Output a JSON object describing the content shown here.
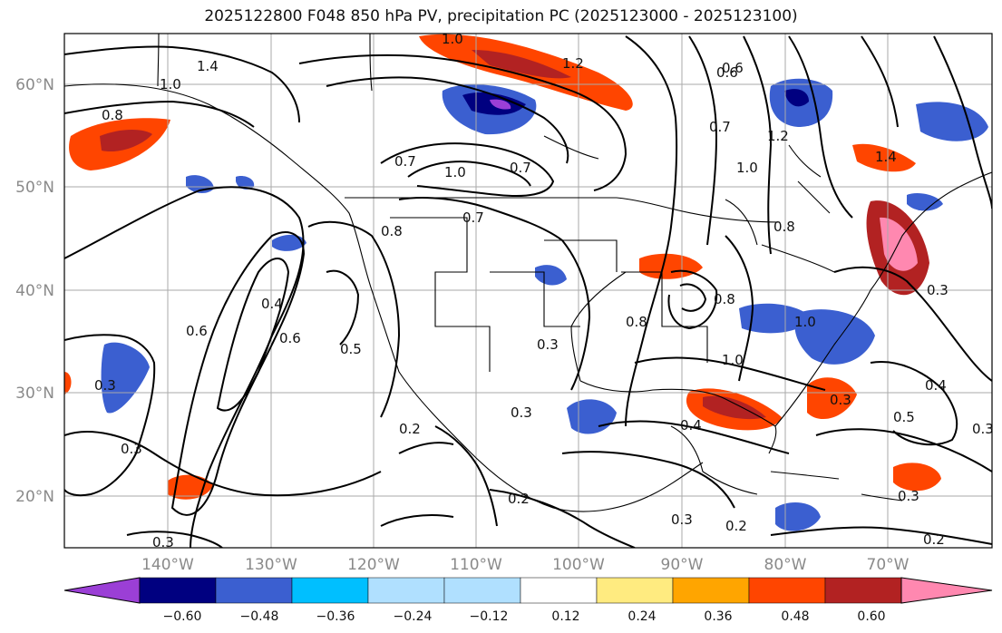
{
  "title": "2025122800 F048 850 hPa PV, precipitation PC (2025123000 - 2025123100)",
  "lat_labels": [
    "60°N",
    "50°N",
    "40°N",
    "30°N",
    "20°N"
  ],
  "lon_labels": [
    "140°W",
    "130°W",
    "120°W",
    "110°W",
    "100°W",
    "90°W",
    "80°W",
    "70°W"
  ],
  "colorbar": {
    "tick_labels": [
      "−0.60",
      "−0.48",
      "−0.36",
      "−0.24",
      "−0.12",
      "0.12",
      "0.24",
      "0.36",
      "0.48",
      "0.60"
    ],
    "colors": [
      "#9b3fd6",
      "#000080",
      "#3b5fd0",
      "#00bfff",
      "#b0e0ff",
      "#ffffff",
      "#ffeb80",
      "#ffa500",
      "#ff4500",
      "#b22222",
      "#ff88b0"
    ]
  },
  "contour_labels": [
    "1.0",
    "1.2",
    "1.4",
    "1.0",
    "0.8",
    "0.6",
    "0.7",
    "1.0",
    "0.7",
    "0.7",
    "0.6",
    "0.7",
    "1.0",
    "1.2",
    "1.4",
    "0.8",
    "0.8",
    "0.4",
    "0.6",
    "0.6",
    "0.5",
    "0.3",
    "0.3",
    "0.3",
    "0.3",
    "0.2",
    "0.3",
    "0.2",
    "0.8",
    "1.0",
    "0.8",
    "0.4",
    "1.0",
    "0.3",
    "0.5",
    "0.4",
    "0.3",
    "0.3",
    "0.2",
    "0.2",
    "0.3",
    "0.3"
  ]
}
